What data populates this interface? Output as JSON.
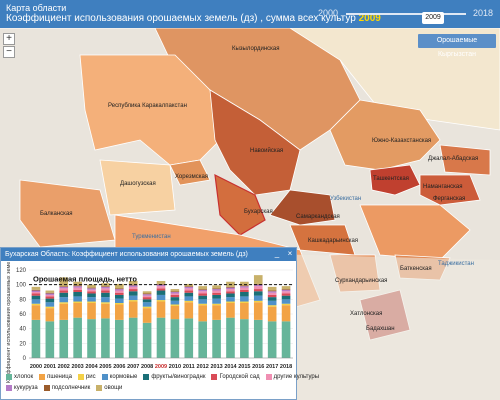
{
  "header": {
    "title": "Карта области",
    "subtitle": "Коэффициент использования орошаемых земель (дз) , сумма всех культур",
    "year": "2009"
  },
  "timeslider": {
    "min": "2000",
    "max": "2018",
    "current": "2009"
  },
  "zoom": {
    "in": "+",
    "out": "−"
  },
  "irrigated_button": "Орошаемые Кыргызстан",
  "map": {
    "regions": [
      "Кызылординская",
      "Республика Каракалпакстан",
      "Навоийская",
      "Южно-Казахстанская",
      "Джалал-Абадская",
      "Ташкентская",
      "Наманганская",
      "Ферганская",
      "Бухарская",
      "Самаркандская",
      "Дашогузская",
      "Хорезмская",
      "Балканская",
      "Сурхандарьинская",
      "Баткенская",
      "Кашкадарьинская",
      "Хатлонская",
      "Бадахшан",
      "Туркменистан",
      "Таджикистан",
      "Узбекистан"
    ]
  },
  "popup": {
    "title": "Бухарская Область: Коэффициент использования орошаемых земель (дз)",
    "minimize": "_",
    "close": "×",
    "chart_data": {
      "type": "bar",
      "stacked": true,
      "ylabel": "Коэффициент использования орошаемых земель (дз)",
      "annotation": "Орошаемая площадь, нетто",
      "reference_line": 100,
      "ylim": [
        0,
        120
      ],
      "yticks": [
        0,
        20,
        40,
        60,
        80,
        100,
        120
      ],
      "highlight_year": "2009",
      "categories": [
        "2000",
        "2001",
        "2002",
        "2003",
        "2004",
        "2005",
        "2006",
        "2007",
        "2008",
        "2009",
        "2010",
        "2011",
        "2012",
        "2013",
        "2014",
        "2015",
        "2016",
        "2017",
        "2018"
      ],
      "series": [
        {
          "name": "хлопок",
          "color": "#66b59a",
          "values": [
            52,
            50,
            52,
            55,
            53,
            54,
            52,
            55,
            48,
            55,
            53,
            54,
            50,
            52,
            55,
            53,
            52,
            50,
            50
          ]
        },
        {
          "name": "пшеница",
          "color": "#f2a345",
          "values": [
            20,
            18,
            22,
            20,
            22,
            20,
            21,
            22,
            20,
            22,
            18,
            22,
            22,
            20,
            20,
            22,
            24,
            20,
            22
          ]
        },
        {
          "name": "рис",
          "color": "#f4d147",
          "values": [
            2,
            2,
            2,
            2,
            2,
            2,
            2,
            2,
            2,
            2,
            2,
            2,
            2,
            2,
            2,
            2,
            2,
            2,
            2
          ]
        },
        {
          "name": "кормовые",
          "color": "#4f91c9",
          "values": [
            6,
            6,
            7,
            7,
            6,
            7,
            6,
            6,
            6,
            7,
            5,
            6,
            6,
            7,
            6,
            7,
            7,
            6,
            6
          ]
        },
        {
          "name": "фрукты/винограднк",
          "color": "#1a6f77",
          "values": [
            5,
            5,
            6,
            6,
            5,
            6,
            5,
            6,
            4,
            6,
            5,
            5,
            5,
            5,
            5,
            6,
            6,
            5,
            5
          ]
        },
        {
          "name": "Городской сад",
          "color": "#d94b57",
          "values": [
            3,
            3,
            3,
            3,
            3,
            3,
            3,
            3,
            3,
            3,
            3,
            3,
            3,
            3,
            3,
            3,
            3,
            3,
            3
          ]
        },
        {
          "name": "другие культуры",
          "color": "#f08fb3",
          "values": [
            2,
            2,
            3,
            3,
            2,
            3,
            3,
            3,
            2,
            3,
            2,
            3,
            3,
            3,
            3,
            3,
            4,
            3,
            3
          ]
        },
        {
          "name": "кукуруза",
          "color": "#b47bc7",
          "values": [
            2,
            2,
            2,
            2,
            2,
            2,
            2,
            2,
            2,
            2,
            2,
            2,
            2,
            2,
            2,
            2,
            2,
            2,
            2
          ]
        },
        {
          "name": "подсолнечник",
          "color": "#9b5c2b",
          "values": [
            1,
            1,
            1,
            1,
            1,
            1,
            1,
            1,
            1,
            1,
            1,
            1,
            1,
            1,
            1,
            1,
            1,
            1,
            1
          ]
        },
        {
          "name": "овощи",
          "color": "#c8b16a",
          "values": [
            4,
            3,
            12,
            5,
            4,
            4,
            6,
            5,
            3,
            4,
            3,
            3,
            4,
            4,
            7,
            5,
            12,
            5,
            4
          ]
        }
      ]
    },
    "legend_row1": [
      "хлопок",
      "пшеница",
      "рис",
      "кормовые",
      "фрукты/винограднк",
      "Городской сад",
      "другие культуры"
    ],
    "legend_row2": [
      "кукуруза",
      "подсолнечник",
      "овощи"
    ],
    "colors": {
      "хлопок": "#66b59a",
      "пшеница": "#f2a345",
      "рис": "#f4d147",
      "кормовые": "#4f91c9",
      "фрукты/винограднк": "#1a6f77",
      "Городской сад": "#d94b57",
      "другие культуры": "#f08fb3",
      "кукуруза": "#b47bc7",
      "подсолнечник": "#9b5c2b",
      "овощи": "#c8b16a"
    }
  }
}
